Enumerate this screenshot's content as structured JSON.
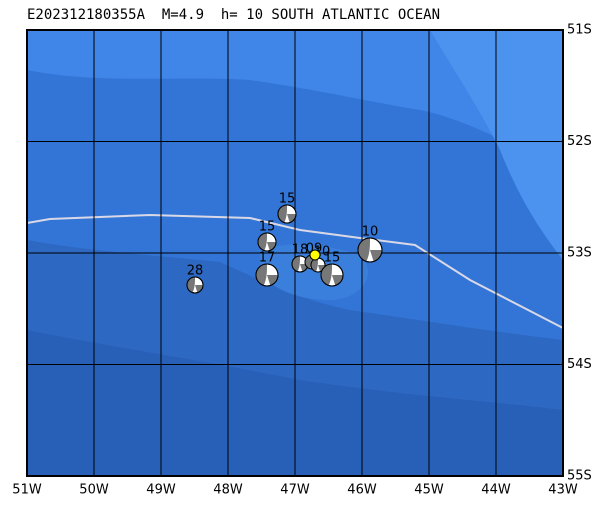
{
  "header": {
    "title": "E202312180355A  M=4.9  h= 10 SOUTH ATLANTIC OCEAN"
  },
  "map": {
    "lon_labels": [
      "51W",
      "50W",
      "49W",
      "48W",
      "47W",
      "46W",
      "45W",
      "44W",
      "43W"
    ],
    "lat_labels": [
      "51S",
      "52S",
      "53S",
      "54S",
      "55S"
    ],
    "events": [
      {
        "label": "15"
      },
      {
        "label": "15"
      },
      {
        "label": "10"
      },
      {
        "label": "17"
      },
      {
        "label": "18"
      },
      {
        "label": "09"
      },
      {
        "label": "10"
      },
      {
        "label": "15"
      },
      {
        "label": "28"
      }
    ]
  }
}
